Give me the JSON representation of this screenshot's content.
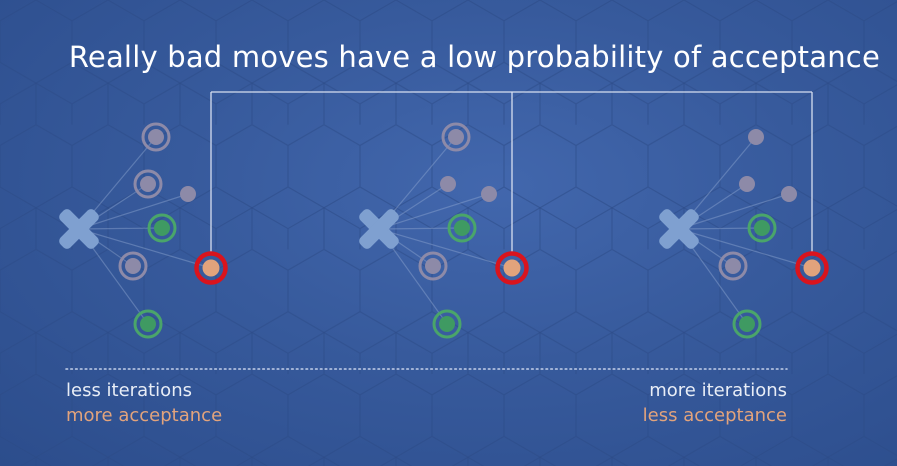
{
  "title": "Really bad moves have a low probability of acceptance",
  "bottom": {
    "left_line1": "less iterations",
    "left_line2": "more acceptance",
    "right_line1": "more iterations",
    "right_line2": "less acceptance"
  },
  "colors": {
    "background": "#375a9c",
    "bad_move_highlight": "#d9141d",
    "bad_move_fill": "#e2a37c",
    "good_move": "#4aa56a",
    "neutral_move": "#8d8aa8",
    "current_state": "#7fa0d0",
    "label_accent": "#e2a37c"
  },
  "icons": {
    "current_state": "cross-icon"
  }
}
